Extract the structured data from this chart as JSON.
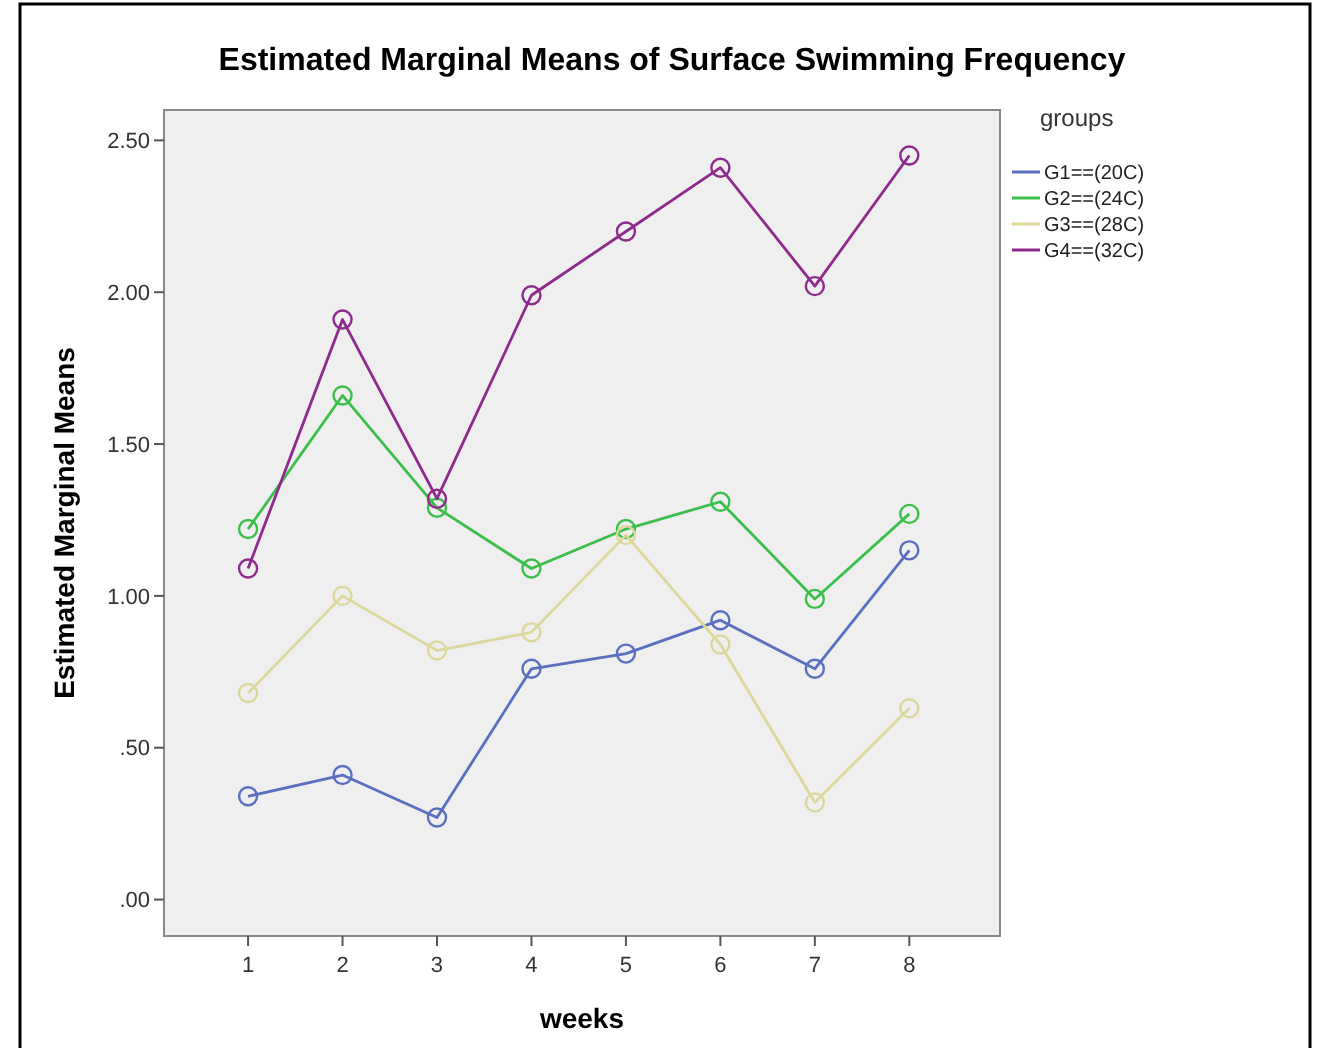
{
  "chart_data": {
    "type": "line",
    "title": "Estimated Marginal Means of Surface Swimming Frequency",
    "xlabel": "weeks",
    "ylabel": "Estimated Marginal Means",
    "legend_title": "groups",
    "legend": "right",
    "marker": "circle",
    "line_style": "solid",
    "grid": false,
    "categories": [
      "1",
      "2",
      "3",
      "4",
      "5",
      "6",
      "7",
      "8"
    ],
    "ylim": [
      -0.12,
      2.6
    ],
    "yticks": [
      {
        "value": 0,
        "label": ".00"
      },
      {
        "value": 0.5,
        "label": ".50"
      },
      {
        "value": 1,
        "label": "1.00"
      },
      {
        "value": 1.5,
        "label": "1.50"
      },
      {
        "value": 2,
        "label": "2.00"
      },
      {
        "value": 2.5,
        "label": "2.50"
      }
    ],
    "series": [
      {
        "name": "G1==(20C)",
        "color": "#5a6fbf",
        "values": [
          0.34,
          0.41,
          0.27,
          0.76,
          0.81,
          0.92,
          0.76,
          1.15
        ]
      },
      {
        "name": "G2==(24C)",
        "color": "#3cbf4a",
        "values": [
          1.22,
          1.66,
          1.29,
          1.09,
          1.22,
          1.31,
          0.99,
          1.27
        ]
      },
      {
        "name": "G3==(28C)",
        "color": "#dcd89c",
        "values": [
          0.68,
          1.0,
          0.82,
          0.88,
          1.2,
          0.84,
          0.32,
          0.63
        ]
      },
      {
        "name": "G4==(32C)",
        "color": "#8e2a8c",
        "values": [
          1.09,
          1.91,
          1.32,
          1.99,
          2.2,
          2.41,
          2.02,
          2.45
        ]
      }
    ]
  }
}
